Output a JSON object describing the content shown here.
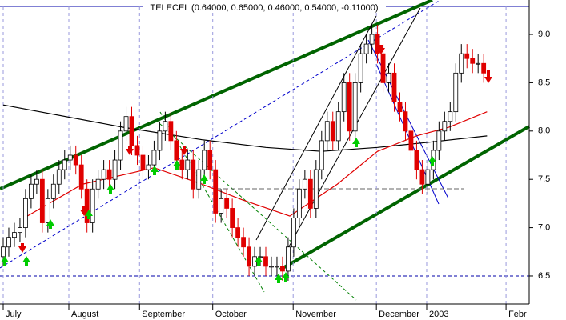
{
  "chart_data": {
    "type": "candlestick",
    "title": "TELECEL (0.64000, 0.65000, 0.46000, 0.54000, -0.11000)",
    "xlim": [
      0,
      94
    ],
    "xticks": [
      {
        "value": 0,
        "label": "July"
      },
      {
        "value": 11.75,
        "label": "August"
      },
      {
        "value": 24.4,
        "label": "September"
      },
      {
        "value": 37.5,
        "label": "October"
      },
      {
        "value": 51.9,
        "label": "November"
      },
      {
        "value": 66.8,
        "label": "December"
      },
      {
        "value": 75.8,
        "label": "2003"
      },
      {
        "value": 90,
        "label": "Febr"
      }
    ],
    "ylim": [
      6.21,
      9.29
    ],
    "yticks": [
      6.5,
      {
        "value": 7,
        "label": "7.0"
      },
      7.5,
      {
        "value": 8,
        "label": "8.0"
      },
      8.5,
      {
        "value": 9,
        "label": "9.0"
      }
    ],
    "up_color": "#ffffff",
    "down_color": "#e00000",
    "open": [
      6.7,
      6.8,
      6.9,
      6.95,
      7.0,
      7.3,
      7.45,
      7.5,
      7.05,
      7.3,
      7.45,
      7.6,
      7.7,
      7.75,
      7.65,
      7.4,
      7.05,
      7.4,
      7.5,
      7.6,
      7.5,
      7.7,
      8.0,
      8.15,
      7.85,
      7.75,
      7.6,
      7.65,
      7.8,
      8.0,
      8.1,
      7.9,
      7.7,
      7.6,
      7.7,
      7.4,
      7.6,
      7.8,
      7.6,
      7.15,
      7.3,
      7.2,
      7.0,
      6.9,
      6.8,
      6.6,
      6.7,
      6.7,
      6.6,
      6.6,
      6.6,
      6.55,
      6.8,
      7.1,
      7.4,
      7.5,
      7.2,
      7.6,
      7.9,
      8.1,
      7.9,
      8.2,
      8.5,
      8.0,
      8.5,
      8.8,
      8.9,
      9.0,
      8.8,
      8.5,
      8.6,
      8.3,
      8.2,
      8.0,
      7.8,
      7.6,
      7.45,
      7.6,
      7.8,
      8.0,
      8.1,
      8.2,
      8.6,
      8.8,
      8.75,
      8.7,
      8.7
    ],
    "high": [
      6.9,
      7.0,
      7.05,
      7.1,
      7.4,
      7.55,
      7.6,
      7.6,
      7.4,
      7.55,
      7.7,
      7.8,
      7.85,
      7.85,
      7.75,
      7.5,
      7.5,
      7.6,
      7.7,
      7.7,
      7.8,
      8.1,
      8.25,
      8.25,
      7.95,
      7.85,
      7.75,
      7.9,
      8.1,
      8.2,
      8.2,
      8.0,
      7.8,
      7.8,
      7.8,
      7.7,
      7.9,
      7.9,
      7.7,
      7.4,
      7.4,
      7.3,
      7.1,
      7.0,
      6.9,
      6.8,
      6.8,
      6.8,
      6.7,
      6.7,
      6.7,
      6.9,
      7.2,
      7.5,
      7.6,
      7.6,
      7.7,
      8.0,
      8.2,
      8.2,
      8.3,
      8.6,
      8.6,
      8.6,
      8.9,
      9.0,
      9.1,
      9.1,
      8.9,
      8.7,
      8.7,
      8.4,
      8.3,
      8.1,
      7.9,
      7.7,
      7.7,
      7.9,
      8.1,
      8.2,
      8.3,
      8.7,
      8.9,
      8.9,
      8.85,
      8.8,
      8.8
    ],
    "low": [
      6.6,
      6.7,
      6.8,
      6.85,
      6.9,
      7.2,
      7.35,
      6.95,
      6.95,
      7.2,
      7.35,
      7.5,
      7.6,
      7.55,
      7.3,
      6.95,
      6.95,
      7.3,
      7.4,
      7.4,
      7.4,
      7.6,
      7.9,
      7.75,
      7.65,
      7.5,
      7.5,
      7.55,
      7.7,
      7.9,
      7.8,
      7.6,
      7.5,
      7.5,
      7.3,
      7.3,
      7.5,
      7.5,
      7.05,
      7.05,
      7.1,
      6.9,
      6.8,
      6.7,
      6.5,
      6.5,
      6.6,
      6.5,
      6.5,
      6.5,
      6.45,
      6.45,
      6.7,
      7.0,
      7.3,
      7.1,
      7.1,
      7.5,
      7.8,
      7.8,
      7.8,
      8.1,
      7.9,
      7.9,
      8.4,
      8.7,
      8.8,
      8.7,
      8.4,
      8.4,
      8.2,
      8.1,
      7.9,
      7.7,
      7.5,
      7.35,
      7.35,
      7.5,
      7.7,
      7.9,
      8.0,
      8.1,
      8.5,
      8.65,
      8.6,
      8.6,
      8.5
    ],
    "close": [
      6.8,
      6.9,
      6.95,
      7.0,
      7.3,
      7.45,
      7.5,
      7.05,
      7.3,
      7.45,
      7.6,
      7.7,
      7.75,
      7.65,
      7.4,
      7.05,
      7.4,
      7.5,
      7.6,
      7.5,
      7.7,
      8.0,
      8.15,
      7.85,
      7.75,
      7.6,
      7.65,
      7.8,
      8.0,
      8.1,
      7.9,
      7.7,
      7.6,
      7.7,
      7.4,
      7.6,
      7.8,
      7.6,
      7.15,
      7.3,
      7.2,
      7.0,
      6.9,
      6.8,
      6.6,
      6.7,
      6.7,
      6.6,
      6.6,
      6.6,
      6.55,
      6.8,
      7.1,
      7.4,
      7.5,
      7.2,
      7.6,
      7.9,
      8.1,
      7.9,
      8.2,
      8.5,
      8.0,
      8.5,
      8.8,
      8.9,
      9.0,
      8.8,
      8.5,
      8.6,
      8.3,
      8.2,
      8.0,
      7.8,
      7.6,
      7.45,
      7.6,
      7.8,
      8.0,
      8.1,
      8.2,
      8.6,
      8.8,
      8.75,
      8.7,
      8.7,
      8.6
    ],
    "lines": [
      {
        "color": "#000000",
        "x": [
          0,
          21.4,
          35.6,
          47,
          57,
          67,
          75.5,
          86.6
        ],
        "values": [
          8.27,
          8.04,
          7.91,
          7.83,
          7.79,
          7.83,
          7.88,
          7.95
        ]
      },
      {
        "color": "#e00000",
        "x": [
          4.3,
          14.2,
          27,
          35.6,
          42.7,
          51.3,
          59.8,
          67,
          74,
          79.8,
          86.6
        ],
        "values": [
          7.12,
          7.45,
          7.62,
          7.45,
          7.29,
          7.12,
          7.45,
          7.79,
          7.95,
          8.04,
          8.2
        ]
      }
    ]
  }
}
